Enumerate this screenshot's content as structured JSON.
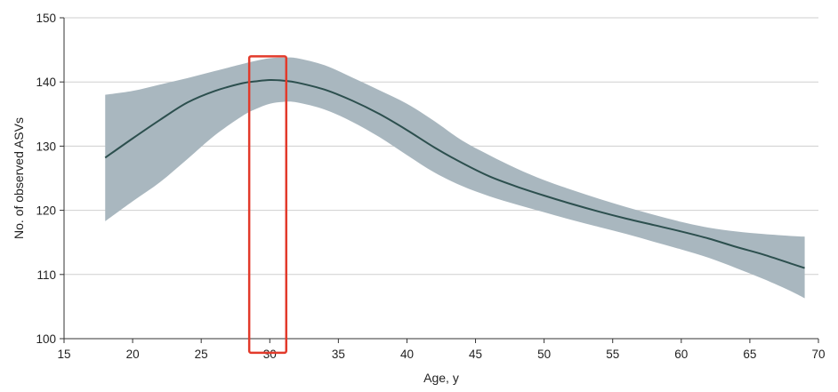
{
  "chart_data": {
    "type": "line",
    "xlabel": "Age, y",
    "ylabel": "No. of observed ASVs",
    "xlim": [
      15,
      70
    ],
    "ylim": [
      100,
      150
    ],
    "xticks": [
      15,
      20,
      25,
      30,
      35,
      40,
      45,
      50,
      55,
      60,
      65,
      70
    ],
    "yticks": [
      100,
      110,
      120,
      130,
      140,
      150
    ],
    "grid": "horizontal",
    "series": [
      {
        "x": [
          18,
          20,
          22,
          24,
          26,
          28,
          29,
          30,
          31,
          32,
          34,
          36,
          38,
          40,
          42,
          44,
          46,
          48,
          50,
          52,
          54,
          56,
          58,
          60,
          62,
          64,
          66,
          68,
          69
        ],
        "y": [
          128.2,
          131.2,
          134.1,
          136.8,
          138.6,
          139.8,
          140.1,
          140.3,
          140.2,
          139.9,
          138.8,
          137.1,
          135.0,
          132.5,
          129.8,
          127.4,
          125.3,
          123.7,
          122.3,
          121.0,
          119.8,
          118.7,
          117.7,
          116.7,
          115.6,
          114.3,
          113.1,
          111.7,
          111.0
        ],
        "lower": [
          118.3,
          121.4,
          124.4,
          128.0,
          131.7,
          134.7,
          135.8,
          136.6,
          136.9,
          136.8,
          135.7,
          133.8,
          131.4,
          128.6,
          125.9,
          123.8,
          122.2,
          120.9,
          119.7,
          118.5,
          117.4,
          116.3,
          115.1,
          113.9,
          112.6,
          111.0,
          109.3,
          107.4,
          106.3
        ],
        "upper": [
          138.0,
          138.6,
          139.6,
          140.6,
          141.7,
          142.8,
          143.3,
          143.7,
          143.8,
          143.7,
          142.6,
          140.7,
          138.7,
          136.6,
          133.9,
          130.9,
          128.6,
          126.5,
          124.7,
          123.2,
          121.8,
          120.5,
          119.3,
          118.2,
          117.3,
          116.7,
          116.3,
          116.0,
          115.9
        ]
      }
    ],
    "highlight": {
      "x_from": 28.5,
      "x_to": 31.2,
      "y_from": 97.8,
      "y_to": 144.0
    },
    "colors": {
      "line": "#2c4f4e",
      "band": "#a9b7bf",
      "grid": "#cfcfcf",
      "axis": "#333333",
      "highlight": "#e23a2b"
    }
  }
}
